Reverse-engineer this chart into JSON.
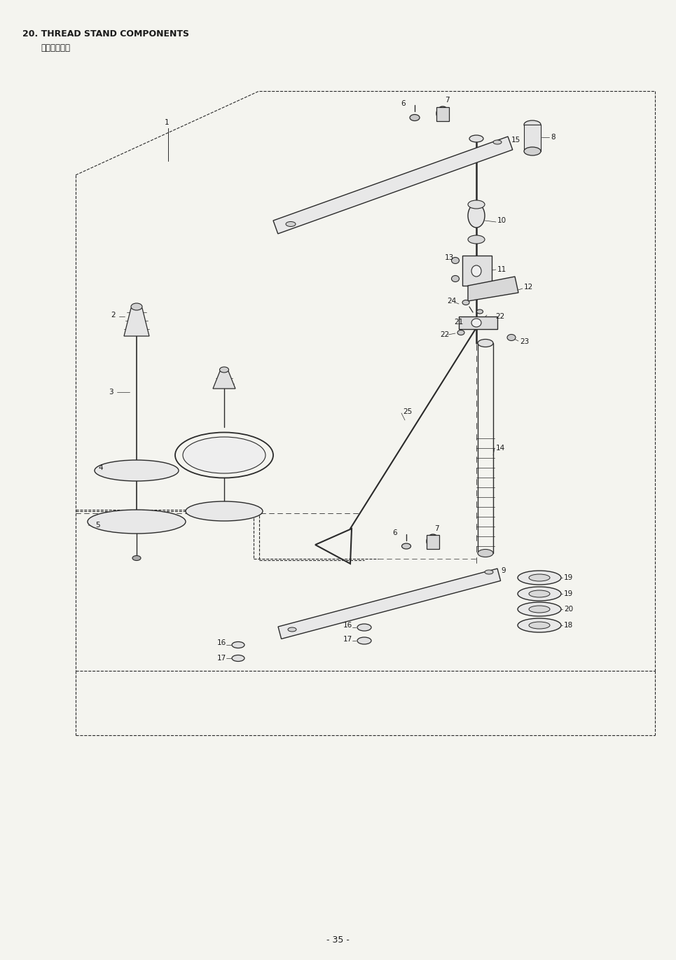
{
  "title_line1": "20. THREAD STAND COMPONENTS",
  "title_line2": "糸立裝置関係",
  "page_number": "- 35 -",
  "bg_color": "#f4f4ef",
  "line_color": "#2a2a2a",
  "text_color": "#1a1a1a",
  "lc": "#2a2a2a"
}
